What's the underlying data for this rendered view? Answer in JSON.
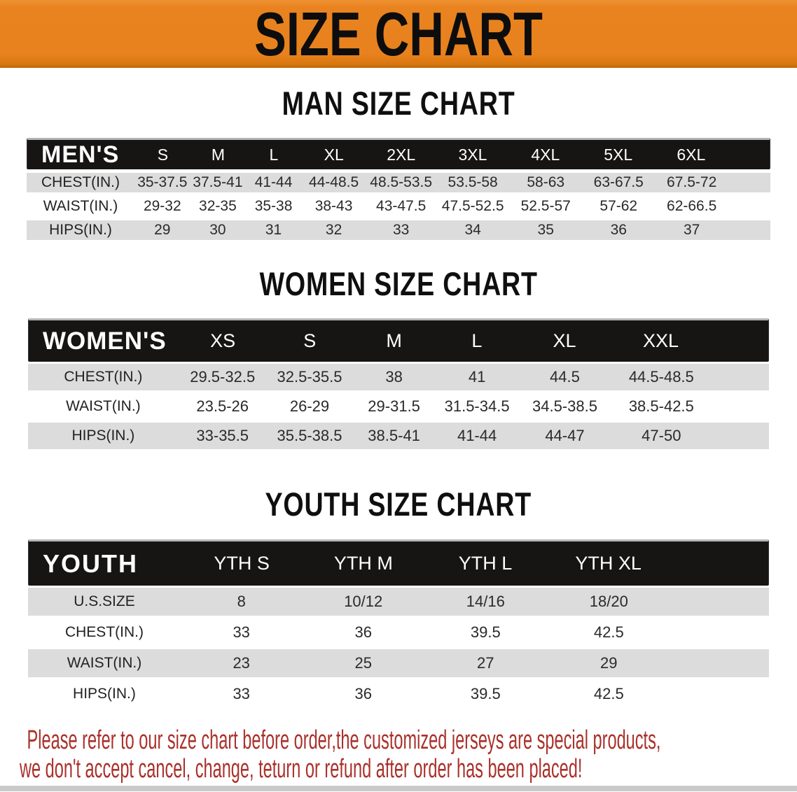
{
  "banner": {
    "title": "SIZE CHART",
    "bg_color": "#E8821E",
    "text_color": "#0D0D0D"
  },
  "colors": {
    "header_bar": "#171414",
    "row_gray": "#DCDCDC",
    "row_white": "#FFFFFF",
    "footer_red": "#AA312B"
  },
  "men": {
    "heading": "MAN SIZE CHART",
    "header": [
      "MEN'S",
      "S",
      "M",
      "L",
      "XL",
      "2XL",
      "3XL",
      "4XL",
      "5XL",
      "6XL"
    ],
    "rows": [
      [
        "CHEST(IN.)",
        "35-37.5",
        "37.5-41",
        "41-44",
        "44-48.5",
        "48.5-53.5",
        "53.5-58",
        "58-63",
        "63-67.5",
        "67.5-72"
      ],
      [
        "WAIST(IN.)",
        "29-32",
        "32-35",
        "35-38",
        "38-43",
        "43-47.5",
        "47.5-52.5",
        "52.5-57",
        "57-62",
        "62-66.5"
      ],
      [
        "HIPS(IN.)",
        "29",
        "30",
        "31",
        "32",
        "33",
        "34",
        "35",
        "36",
        "37"
      ]
    ]
  },
  "women": {
    "heading": "WOMEN SIZE CHART",
    "header": [
      "WOMEN'S",
      "XS",
      "S",
      "M",
      "L",
      "XL",
      "XXL"
    ],
    "rows": [
      [
        "CHEST(IN.)",
        "29.5-32.5",
        "32.5-35.5",
        "38",
        "41",
        "44.5",
        "44.5-48.5"
      ],
      [
        "WAIST(IN.)",
        "23.5-26",
        "26-29",
        "29-31.5",
        "31.5-34.5",
        "34.5-38.5",
        "38.5-42.5"
      ],
      [
        "HIPS(IN.)",
        "33-35.5",
        "35.5-38.5",
        "38.5-41",
        "41-44",
        "44-47",
        "47-50"
      ]
    ]
  },
  "youth": {
    "heading": "YOUTH SIZE CHART",
    "header": [
      "YOUTH",
      "YTH S",
      "YTH M",
      "YTH L",
      "YTH XL"
    ],
    "rows": [
      [
        "U.S.SIZE",
        "8",
        "10/12",
        "14/16",
        "18/20"
      ],
      [
        "CHEST(IN.)",
        "33",
        "36",
        "39.5",
        "42.5"
      ],
      [
        "WAIST(IN.)",
        "23",
        "25",
        "27",
        "29"
      ],
      [
        "HIPS(IN.)",
        "33",
        "36",
        "39.5",
        "42.5"
      ]
    ]
  },
  "footer": {
    "line1": "Please refer to our size chart before order,the customized jerseys are special products,",
    "line2": "we don't accept cancel, change, teturn or refund after order has been placed!"
  }
}
